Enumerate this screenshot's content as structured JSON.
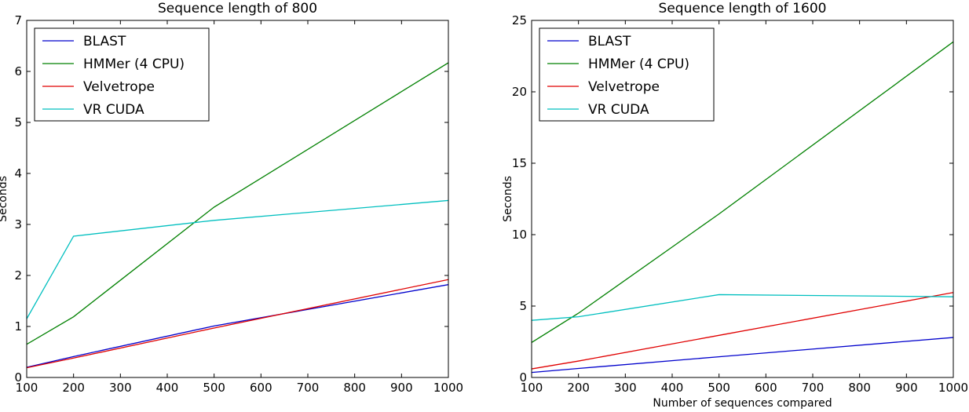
{
  "chart_data": [
    {
      "type": "line",
      "title": "Sequence length of 800",
      "xlabel": "",
      "ylabel": "Seconds",
      "xlim": [
        100,
        1000
      ],
      "ylim": [
        0,
        7
      ],
      "xticks": [
        100,
        200,
        300,
        400,
        500,
        600,
        700,
        800,
        900,
        1000
      ],
      "yticks": [
        0,
        1,
        2,
        3,
        4,
        5,
        6,
        7
      ],
      "grid": false,
      "legend_position": "top-left",
      "series": [
        {
          "name": "BLAST",
          "color": "#0000cc",
          "x": [
            100,
            200,
            500,
            1000
          ],
          "y": [
            0.2,
            0.41,
            1.01,
            1.82
          ]
        },
        {
          "name": "HMMer (4 CPU)",
          "color": "#008000",
          "x": [
            100,
            200,
            500,
            1000
          ],
          "y": [
            0.65,
            1.19,
            3.34,
            6.17
          ]
        },
        {
          "name": "Velvetrope",
          "color": "#e00000",
          "x": [
            100,
            200,
            500,
            1000
          ],
          "y": [
            0.19,
            0.38,
            0.97,
            1.92
          ]
        },
        {
          "name": "VR CUDA",
          "color": "#00bfbf",
          "x": [
            100,
            200,
            500,
            1000
          ],
          "y": [
            1.15,
            2.77,
            3.08,
            3.47
          ]
        }
      ]
    },
    {
      "type": "line",
      "title": "Sequence length of 1600",
      "xlabel": "Number of sequences compared",
      "ylabel": "Seconds",
      "xlim": [
        100,
        1000
      ],
      "ylim": [
        0,
        25
      ],
      "xticks": [
        100,
        200,
        300,
        400,
        500,
        600,
        700,
        800,
        900,
        1000
      ],
      "yticks": [
        0,
        5,
        10,
        15,
        20,
        25
      ],
      "grid": false,
      "legend_position": "top-left",
      "series": [
        {
          "name": "BLAST",
          "color": "#0000cc",
          "x": [
            100,
            200,
            500,
            1000
          ],
          "y": [
            0.35,
            0.63,
            1.45,
            2.8
          ]
        },
        {
          "name": "HMMer (4 CPU)",
          "color": "#008000",
          "x": [
            100,
            200,
            500,
            1000
          ],
          "y": [
            2.45,
            4.5,
            11.45,
            23.5
          ]
        },
        {
          "name": "Velvetrope",
          "color": "#e00000",
          "x": [
            100,
            200,
            500,
            1000
          ],
          "y": [
            0.6,
            1.15,
            2.95,
            5.95
          ]
        },
        {
          "name": "VR CUDA",
          "color": "#00bfbf",
          "x": [
            100,
            200,
            500,
            1000
          ],
          "y": [
            4.0,
            4.25,
            5.8,
            5.65
          ]
        }
      ]
    }
  ]
}
